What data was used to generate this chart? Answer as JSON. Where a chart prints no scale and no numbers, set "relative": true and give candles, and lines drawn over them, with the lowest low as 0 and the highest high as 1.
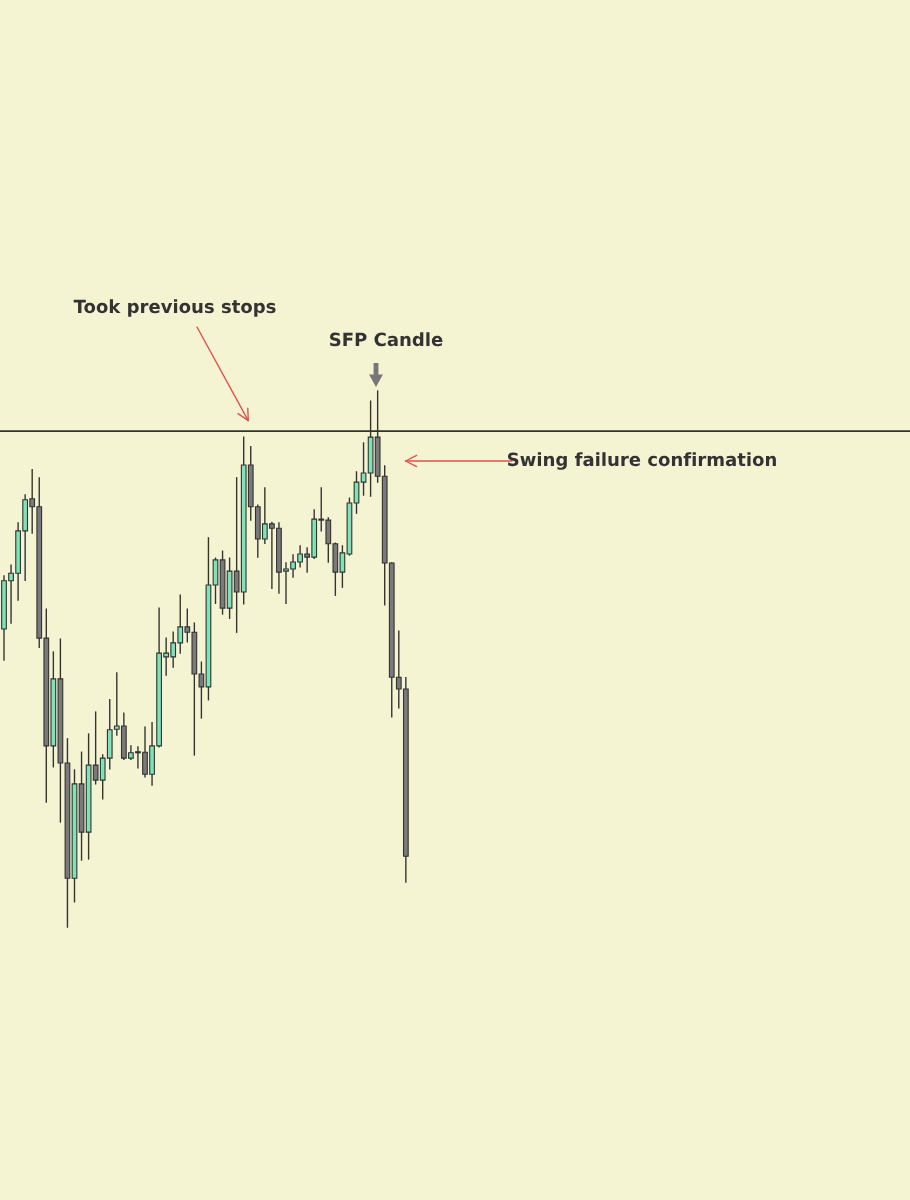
{
  "chart_data": {
    "type": "candlestick",
    "relative": true,
    "categories": [
      null,
      null,
      null,
      null,
      null,
      null,
      null,
      null,
      null,
      null,
      null,
      null,
      null,
      null,
      null,
      null,
      null,
      null,
      null,
      null,
      null,
      null,
      null,
      null,
      null,
      null,
      null,
      null,
      null,
      null,
      null,
      null,
      null,
      null,
      null,
      null,
      null,
      null,
      null,
      null,
      null,
      null,
      null,
      null,
      null,
      null,
      null,
      null,
      null,
      null,
      null,
      null,
      null,
      null,
      null,
      null,
      null,
      null
    ],
    "ohlc": [
      [
        0.556,
        0.655,
        0.498,
        0.646
      ],
      [
        0.646,
        0.675,
        0.567,
        0.66
      ],
      [
        0.66,
        0.754,
        0.61,
        0.739
      ],
      [
        0.739,
        0.806,
        0.647,
        0.797
      ],
      [
        0.799,
        0.853,
        0.735,
        0.784
      ],
      [
        0.784,
        0.838,
        0.522,
        0.539
      ],
      [
        0.539,
        0.593,
        0.233,
        0.338
      ],
      [
        0.338,
        0.513,
        0.299,
        0.463
      ],
      [
        0.463,
        0.537,
        0.196,
        0.306
      ],
      [
        0.306,
        0.351,
        0,
        0.091
      ],
      [
        0.091,
        0.293,
        0.047,
        0.267
      ],
      [
        0.267,
        0.326,
        0.125,
        0.177
      ],
      [
        0.177,
        0.36,
        0.127,
        0.302
      ],
      [
        0.302,
        0.401,
        0.267,
        0.274
      ],
      [
        0.274,
        0.321,
        0.239,
        0.315
      ],
      [
        0.315,
        0.424,
        0.295,
        0.368
      ],
      [
        0.369,
        0.474,
        0.358,
        0.375
      ],
      [
        0.375,
        0.399,
        0.313,
        0.315
      ],
      [
        0.315,
        0.338,
        0.313,
        0.325
      ],
      [
        0.325,
        0.336,
        0.297,
        0.326
      ],
      [
        0.326,
        0.373,
        0.28,
        0.285
      ],
      [
        0.285,
        0.381,
        0.265,
        0.338
      ],
      [
        0.338,
        0.595,
        0.336,
        0.511
      ],
      [
        0.504,
        0.539,
        0.47,
        0.511
      ],
      [
        0.504,
        0.55,
        0.485,
        0.53
      ],
      [
        0.53,
        0.619,
        0.511,
        0.56
      ],
      [
        0.56,
        0.593,
        0.532,
        0.55
      ],
      [
        0.55,
        0.567,
        0.321,
        0.472
      ],
      [
        0.472,
        0.494,
        0.39,
        0.448
      ],
      [
        0.448,
        0.726,
        0.424,
        0.638
      ],
      [
        0.638,
        0.688,
        0.604,
        0.685
      ],
      [
        0.685,
        0.701,
        0.584,
        0.595
      ],
      [
        0.595,
        0.688,
        0.576,
        0.664
      ],
      [
        0.664,
        0.838,
        0.55,
        0.625
      ],
      [
        0.625,
        0.914,
        0.603,
        0.862
      ],
      [
        0.862,
        0.896,
        0.759,
        0.784
      ],
      [
        0.784,
        0.787,
        0.69,
        0.724
      ],
      [
        0.724,
        0.819,
        0.716,
        0.752
      ],
      [
        0.752,
        0.755,
        0.632,
        0.744
      ],
      [
        0.744,
        0.754,
        0.623,
        0.662
      ],
      [
        0.664,
        0.679,
        0.604,
        0.668
      ],
      [
        0.668,
        0.694,
        0.653,
        0.681
      ],
      [
        0.681,
        0.711,
        0.672,
        0.696
      ],
      [
        0.696,
        0.707,
        0.662,
        0.69
      ],
      [
        0.69,
        0.778,
        0.688,
        0.761
      ],
      [
        0.759,
        0.819,
        0.739,
        0.761
      ],
      [
        0.759,
        0.763,
        0.681,
        0.715
      ],
      [
        0.715,
        0.716,
        0.619,
        0.662
      ],
      [
        0.662,
        0.711,
        0.634,
        0.698
      ],
      [
        0.696,
        0.8,
        0.694,
        0.791
      ],
      [
        0.791,
        0.849,
        0.772,
        0.83
      ],
      [
        0.83,
        0.903,
        0.806,
        0.847
      ],
      [
        0.847,
        0.981,
        0.804,
        0.914
      ],
      [
        0.914,
        1,
        0.83,
        0.841
      ],
      [
        0.841,
        0.86,
        0.601,
        0.679
      ],
      [
        0.679,
        0.679,
        0.392,
        0.466
      ],
      [
        0.466,
        0.552,
        0.409,
        0.444
      ],
      [
        0.444,
        0.465,
        0.084,
        0.132
      ]
    ],
    "ref_lines": [
      {
        "axis": "y",
        "value": 0.925,
        "color": "#333333",
        "line_style": "solid"
      }
    ],
    "annotations": [
      "Took previous stops",
      "SFP Candle",
      "Swing failure confirmation"
    ]
  }
}
